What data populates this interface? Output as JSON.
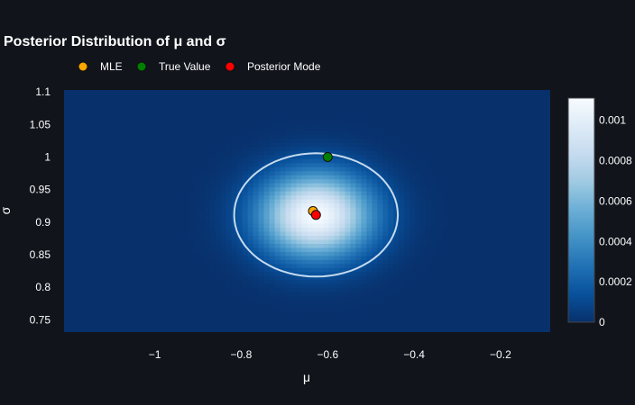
{
  "chart_data": {
    "type": "heatmap",
    "title": "Posterior Distribution of μ and σ",
    "xlabel": "μ",
    "ylabel": "σ",
    "xlim": [
      -1.21,
      -0.085
    ],
    "ylim": [
      0.731,
      1.103
    ],
    "x_ticks": [
      -1,
      -0.8,
      -0.6,
      -0.4,
      -0.2
    ],
    "x_tick_labels": [
      "−1",
      "−0.8",
      "−0.6",
      "−0.4",
      "−0.2"
    ],
    "y_ticks": [
      0.75,
      0.8,
      0.85,
      0.9,
      0.95,
      1,
      1.05,
      1.1
    ],
    "y_tick_labels": [
      "0.75",
      "0.8",
      "0.85",
      "0.9",
      "0.95",
      "1",
      "1.05",
      "1.1"
    ],
    "grid": false,
    "legend": {
      "placement": "top-left",
      "entries": [
        {
          "name": "MLE",
          "color": "#ffa500"
        },
        {
          "name": "True Value",
          "color": "#008000"
        },
        {
          "name": "Posterior Mode",
          "color": "#ff0000"
        }
      ]
    },
    "points": {
      "mle": {
        "x": -0.634,
        "y": 0.917
      },
      "true_value": {
        "x": -0.6,
        "y": 1.0
      },
      "posterior_mode": {
        "x": -0.627,
        "y": 0.911
      }
    },
    "density": {
      "peak_mu": -0.627,
      "peak_sigma": 0.911,
      "sd_mu": 0.09,
      "sd_sigma": 0.045,
      "max_value": 0.0011,
      "contour_level": 0.00012
    },
    "colorbar": {
      "range": [
        0,
        0.00111
      ],
      "ticks": [
        0,
        0.0002,
        0.0004,
        0.0006,
        0.0008,
        0.001
      ],
      "tick_labels": [
        "0",
        "0.0002",
        "0.0004",
        "0.0006",
        "0.0008",
        "0.001"
      ],
      "colorscale": [
        "#08306b",
        "#08519c",
        "#2171b5",
        "#4292c6",
        "#6baed6",
        "#9ecae1",
        "#c6dbef",
        "#deebf7",
        "#f7fbff"
      ]
    },
    "contour_color": "#c6dbef"
  },
  "theme": {
    "background": "#11141b",
    "text": "#ffffff"
  }
}
